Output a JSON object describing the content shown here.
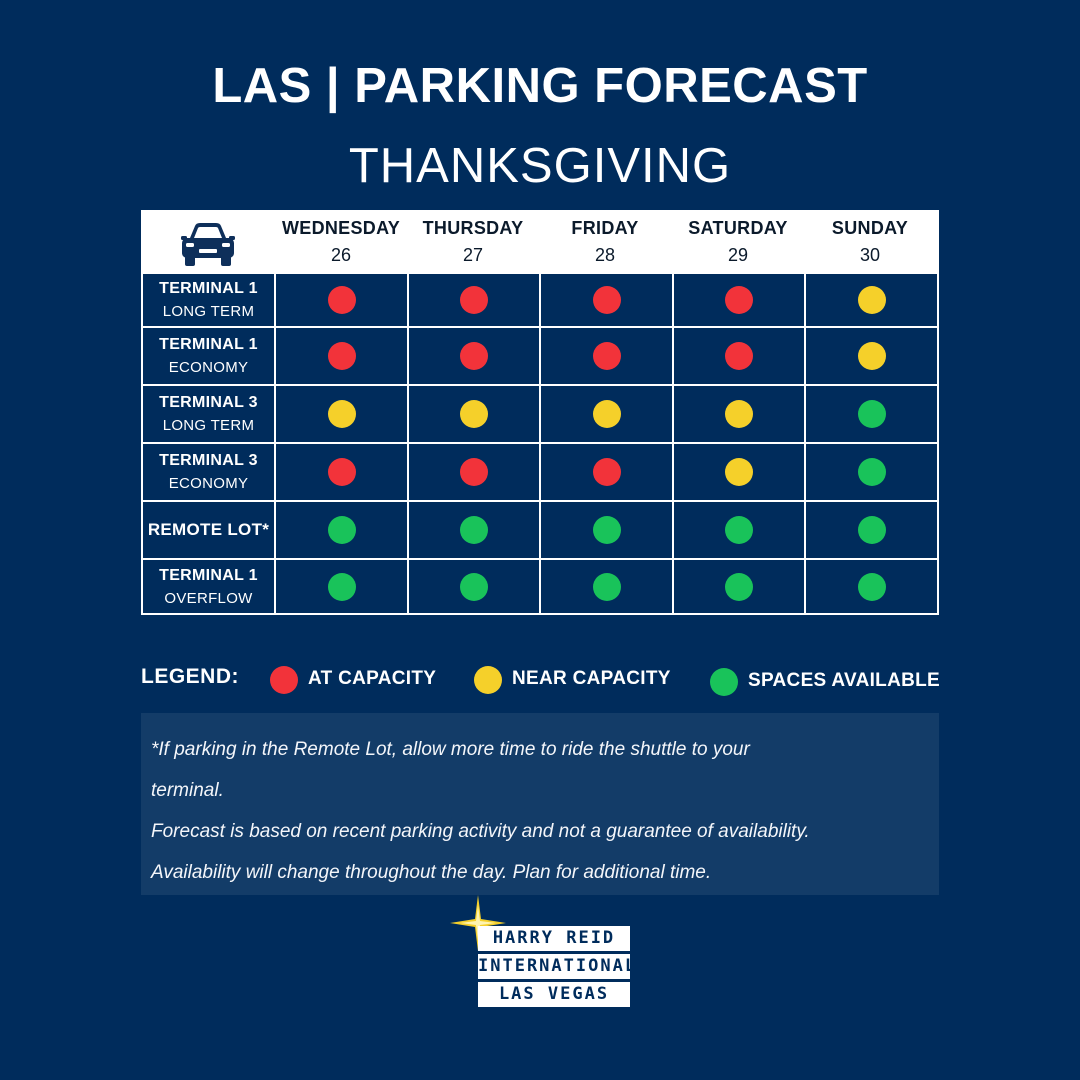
{
  "header": {
    "title": "LAS | PARKING FORECAST",
    "subtitle": "THANKSGIVING"
  },
  "table": {
    "corner_icon": "car-icon",
    "days": [
      {
        "name": "WEDNESDAY",
        "date": "26"
      },
      {
        "name": "THURSDAY",
        "date": "27"
      },
      {
        "name": "FRIDAY",
        "date": "28"
      },
      {
        "name": "SATURDAY",
        "date": "29"
      },
      {
        "name": "SUNDAY",
        "date": "30"
      }
    ],
    "rows": [
      {
        "line1": "TERMINAL 1",
        "line2": "LONG TERM",
        "status": [
          "at_capacity",
          "at_capacity",
          "at_capacity",
          "at_capacity",
          "near_capacity"
        ]
      },
      {
        "line1": "TERMINAL 1",
        "line2": "ECONOMY",
        "status": [
          "at_capacity",
          "at_capacity",
          "at_capacity",
          "at_capacity",
          "near_capacity"
        ]
      },
      {
        "line1": "TERMINAL 3",
        "line2": "LONG TERM",
        "status": [
          "near_capacity",
          "near_capacity",
          "near_capacity",
          "near_capacity",
          "spaces_available"
        ]
      },
      {
        "line1": "TERMINAL 3",
        "line2": "ECONOMY",
        "status": [
          "at_capacity",
          "at_capacity",
          "at_capacity",
          "near_capacity",
          "spaces_available"
        ]
      },
      {
        "line1": "REMOTE LOT*",
        "line2": "",
        "status": [
          "spaces_available",
          "spaces_available",
          "spaces_available",
          "spaces_available",
          "spaces_available"
        ]
      },
      {
        "line1": "TERMINAL 1",
        "line2": "OVERFLOW",
        "status": [
          "spaces_available",
          "spaces_available",
          "spaces_available",
          "spaces_available",
          "spaces_available"
        ]
      }
    ]
  },
  "legend": {
    "title": "LEGEND:",
    "items": [
      {
        "key": "at_capacity",
        "label": "AT CAPACITY",
        "color": "#f2333a"
      },
      {
        "key": "near_capacity",
        "label": "NEAR CAPACITY",
        "color": "#f5d02a"
      },
      {
        "key": "spaces_available",
        "label": "SPACES AVAILABLE",
        "color": "#19c35a"
      }
    ]
  },
  "notes": {
    "line1": "*If parking in the Remote Lot, allow more time to ride the shuttle to your",
    "line2": "terminal.",
    "line3": "Forecast is based on recent parking activity and not a guarantee of availability.",
    "line4": "Availability will change throughout the day. Plan for additional time."
  },
  "logo": {
    "line1": "HARRY REID",
    "line2": "INTERNATIONAL",
    "line3": "LAS VEGAS",
    "icon": "star-icon"
  },
  "colors": {
    "background": "#002c5c",
    "notes_background": "#133c68",
    "at_capacity": "#f2333a",
    "near_capacity": "#f5d02a",
    "spaces_available": "#19c35a",
    "logo_star": "#f5d02a"
  }
}
